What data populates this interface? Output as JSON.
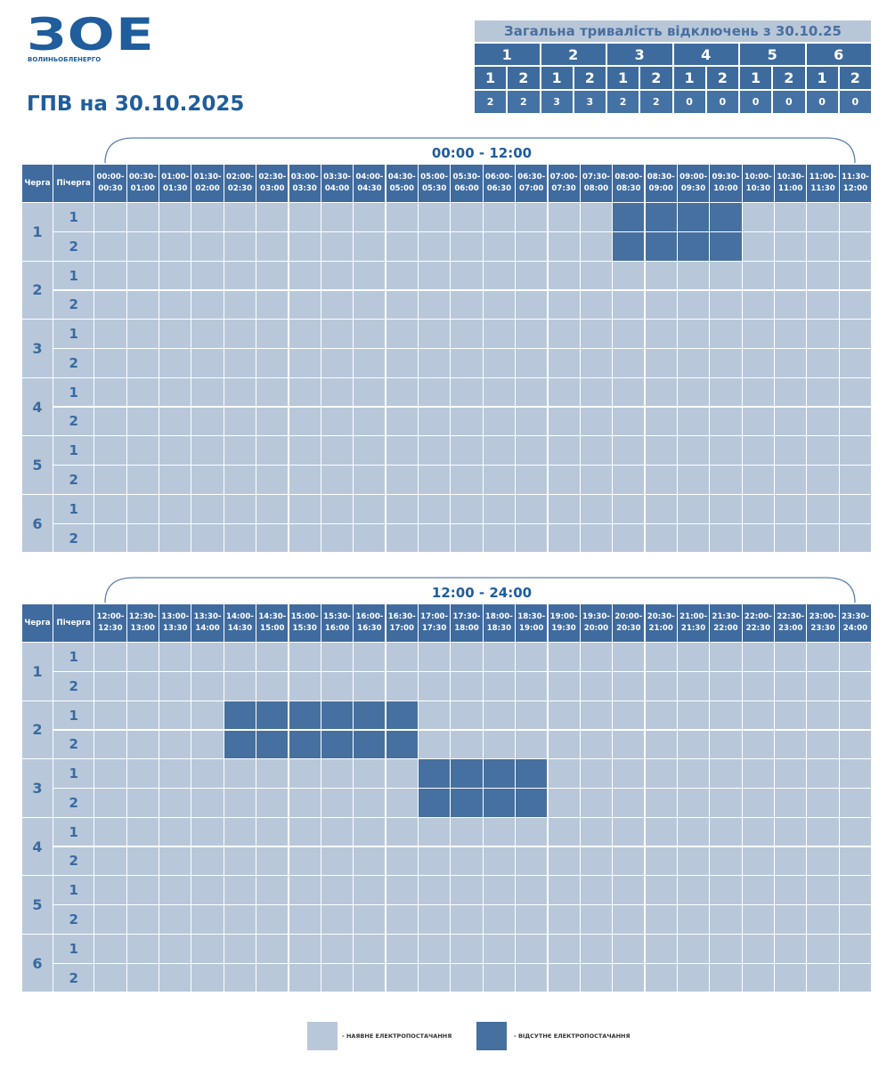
{
  "logo": {
    "mark": "ЗОЕ",
    "name": "ВОЛИНЬОБЛЕНЕРГО"
  },
  "title": "ГПВ на 30.10.2025",
  "summary": {
    "title": "Загальна тривалість відключень з 30.10.25",
    "queues": [
      "1",
      "2",
      "3",
      "4",
      "5",
      "6"
    ],
    "subqueues": [
      "1",
      "2",
      "1",
      "2",
      "1",
      "2",
      "1",
      "2",
      "1",
      "2",
      "1",
      "2"
    ],
    "hours": [
      2,
      2,
      3,
      3,
      2,
      2,
      0,
      0,
      0,
      0,
      0,
      0
    ]
  },
  "schedules": [
    {
      "period": "00:00 - 12:00",
      "queue_header": "Черга",
      "subqueue_header": "Пічерга",
      "slots": [
        [
          "00:00-",
          "00:30"
        ],
        [
          "00:30-",
          "01:00"
        ],
        [
          "01:00-",
          "01:30"
        ],
        [
          "01:30-",
          "02:00"
        ],
        [
          "02:00-",
          "02:30"
        ],
        [
          "02:30-",
          "03:00"
        ],
        [
          "03:00-",
          "03:30"
        ],
        [
          "03:30-",
          "04:00"
        ],
        [
          "04:00-",
          "04:30"
        ],
        [
          "04:30-",
          "05:00"
        ],
        [
          "05:00-",
          "05:30"
        ],
        [
          "05:30-",
          "06:00"
        ],
        [
          "06:00-",
          "06:30"
        ],
        [
          "06:30-",
          "07:00"
        ],
        [
          "07:00-",
          "07:30"
        ],
        [
          "07:30-",
          "08:00"
        ],
        [
          "08:00-",
          "08:30"
        ],
        [
          "08:30-",
          "09:00"
        ],
        [
          "09:00-",
          "09:30"
        ],
        [
          "09:30-",
          "10:00"
        ],
        [
          "10:00-",
          "10:30"
        ],
        [
          "10:30-",
          "11:00"
        ],
        [
          "11:00-",
          "11:30"
        ],
        [
          "11:30-",
          "12:00"
        ]
      ],
      "queues": [
        {
          "queue": "1",
          "subqueues": [
            {
              "label": "1",
              "outage": [
                0,
                0,
                0,
                0,
                0,
                0,
                0,
                0,
                0,
                0,
                0,
                0,
                0,
                0,
                0,
                0,
                1,
                1,
                1,
                1,
                0,
                0,
                0,
                0
              ]
            },
            {
              "label": "2",
              "outage": [
                0,
                0,
                0,
                0,
                0,
                0,
                0,
                0,
                0,
                0,
                0,
                0,
                0,
                0,
                0,
                0,
                1,
                1,
                1,
                1,
                0,
                0,
                0,
                0
              ]
            }
          ]
        },
        {
          "queue": "2",
          "subqueues": [
            {
              "label": "1",
              "outage": [
                0,
                0,
                0,
                0,
                0,
                0,
                0,
                0,
                0,
                0,
                0,
                0,
                0,
                0,
                0,
                0,
                0,
                0,
                0,
                0,
                0,
                0,
                0,
                0
              ]
            },
            {
              "label": "2",
              "outage": [
                0,
                0,
                0,
                0,
                0,
                0,
                0,
                0,
                0,
                0,
                0,
                0,
                0,
                0,
                0,
                0,
                0,
                0,
                0,
                0,
                0,
                0,
                0,
                0
              ]
            }
          ]
        },
        {
          "queue": "3",
          "subqueues": [
            {
              "label": "1",
              "outage": [
                0,
                0,
                0,
                0,
                0,
                0,
                0,
                0,
                0,
                0,
                0,
                0,
                0,
                0,
                0,
                0,
                0,
                0,
                0,
                0,
                0,
                0,
                0,
                0
              ]
            },
            {
              "label": "2",
              "outage": [
                0,
                0,
                0,
                0,
                0,
                0,
                0,
                0,
                0,
                0,
                0,
                0,
                0,
                0,
                0,
                0,
                0,
                0,
                0,
                0,
                0,
                0,
                0,
                0
              ]
            }
          ]
        },
        {
          "queue": "4",
          "subqueues": [
            {
              "label": "1",
              "outage": [
                0,
                0,
                0,
                0,
                0,
                0,
                0,
                0,
                0,
                0,
                0,
                0,
                0,
                0,
                0,
                0,
                0,
                0,
                0,
                0,
                0,
                0,
                0,
                0
              ]
            },
            {
              "label": "2",
              "outage": [
                0,
                0,
                0,
                0,
                0,
                0,
                0,
                0,
                0,
                0,
                0,
                0,
                0,
                0,
                0,
                0,
                0,
                0,
                0,
                0,
                0,
                0,
                0,
                0
              ]
            }
          ]
        },
        {
          "queue": "5",
          "subqueues": [
            {
              "label": "1",
              "outage": [
                0,
                0,
                0,
                0,
                0,
                0,
                0,
                0,
                0,
                0,
                0,
                0,
                0,
                0,
                0,
                0,
                0,
                0,
                0,
                0,
                0,
                0,
                0,
                0
              ]
            },
            {
              "label": "2",
              "outage": [
                0,
                0,
                0,
                0,
                0,
                0,
                0,
                0,
                0,
                0,
                0,
                0,
                0,
                0,
                0,
                0,
                0,
                0,
                0,
                0,
                0,
                0,
                0,
                0
              ]
            }
          ]
        },
        {
          "queue": "6",
          "subqueues": [
            {
              "label": "1",
              "outage": [
                0,
                0,
                0,
                0,
                0,
                0,
                0,
                0,
                0,
                0,
                0,
                0,
                0,
                0,
                0,
                0,
                0,
                0,
                0,
                0,
                0,
                0,
                0,
                0
              ]
            },
            {
              "label": "2",
              "outage": [
                0,
                0,
                0,
                0,
                0,
                0,
                0,
                0,
                0,
                0,
                0,
                0,
                0,
                0,
                0,
                0,
                0,
                0,
                0,
                0,
                0,
                0,
                0,
                0
              ]
            }
          ]
        }
      ]
    },
    {
      "period": "12:00 - 24:00",
      "queue_header": "Черга",
      "subqueue_header": "Пічерга",
      "slots": [
        [
          "12:00-",
          "12:30"
        ],
        [
          "12:30-",
          "13:00"
        ],
        [
          "13:00-",
          "13:30"
        ],
        [
          "13:30-",
          "14:00"
        ],
        [
          "14:00-",
          "14:30"
        ],
        [
          "14:30-",
          "15:00"
        ],
        [
          "15:00-",
          "15:30"
        ],
        [
          "15:30-",
          "16:00"
        ],
        [
          "16:00-",
          "16:30"
        ],
        [
          "16:30-",
          "17:00"
        ],
        [
          "17:00-",
          "17:30"
        ],
        [
          "17:30-",
          "18:00"
        ],
        [
          "18:00-",
          "18:30"
        ],
        [
          "18:30-",
          "19:00"
        ],
        [
          "19:00-",
          "19:30"
        ],
        [
          "19:30-",
          "20:00"
        ],
        [
          "20:00-",
          "20:30"
        ],
        [
          "20:30-",
          "21:00"
        ],
        [
          "21:00-",
          "21:30"
        ],
        [
          "21:30-",
          "22:00"
        ],
        [
          "22:00-",
          "22:30"
        ],
        [
          "22:30-",
          "23:00"
        ],
        [
          "23:00-",
          "23:30"
        ],
        [
          "23:30-",
          "24:00"
        ]
      ],
      "queues": [
        {
          "queue": "1",
          "subqueues": [
            {
              "label": "1",
              "outage": [
                0,
                0,
                0,
                0,
                0,
                0,
                0,
                0,
                0,
                0,
                0,
                0,
                0,
                0,
                0,
                0,
                0,
                0,
                0,
                0,
                0,
                0,
                0,
                0
              ]
            },
            {
              "label": "2",
              "outage": [
                0,
                0,
                0,
                0,
                0,
                0,
                0,
                0,
                0,
                0,
                0,
                0,
                0,
                0,
                0,
                0,
                0,
                0,
                0,
                0,
                0,
                0,
                0,
                0
              ]
            }
          ]
        },
        {
          "queue": "2",
          "subqueues": [
            {
              "label": "1",
              "outage": [
                0,
                0,
                0,
                0,
                1,
                1,
                1,
                1,
                1,
                1,
                0,
                0,
                0,
                0,
                0,
                0,
                0,
                0,
                0,
                0,
                0,
                0,
                0,
                0
              ]
            },
            {
              "label": "2",
              "outage": [
                0,
                0,
                0,
                0,
                1,
                1,
                1,
                1,
                1,
                1,
                0,
                0,
                0,
                0,
                0,
                0,
                0,
                0,
                0,
                0,
                0,
                0,
                0,
                0
              ]
            }
          ]
        },
        {
          "queue": "3",
          "subqueues": [
            {
              "label": "1",
              "outage": [
                0,
                0,
                0,
                0,
                0,
                0,
                0,
                0,
                0,
                0,
                1,
                1,
                1,
                1,
                0,
                0,
                0,
                0,
                0,
                0,
                0,
                0,
                0,
                0
              ]
            },
            {
              "label": "2",
              "outage": [
                0,
                0,
                0,
                0,
                0,
                0,
                0,
                0,
                0,
                0,
                1,
                1,
                1,
                1,
                0,
                0,
                0,
                0,
                0,
                0,
                0,
                0,
                0,
                0
              ]
            }
          ]
        },
        {
          "queue": "4",
          "subqueues": [
            {
              "label": "1",
              "outage": [
                0,
                0,
                0,
                0,
                0,
                0,
                0,
                0,
                0,
                0,
                0,
                0,
                0,
                0,
                0,
                0,
                0,
                0,
                0,
                0,
                0,
                0,
                0,
                0
              ]
            },
            {
              "label": "2",
              "outage": [
                0,
                0,
                0,
                0,
                0,
                0,
                0,
                0,
                0,
                0,
                0,
                0,
                0,
                0,
                0,
                0,
                0,
                0,
                0,
                0,
                0,
                0,
                0,
                0
              ]
            }
          ]
        },
        {
          "queue": "5",
          "subqueues": [
            {
              "label": "1",
              "outage": [
                0,
                0,
                0,
                0,
                0,
                0,
                0,
                0,
                0,
                0,
                0,
                0,
                0,
                0,
                0,
                0,
                0,
                0,
                0,
                0,
                0,
                0,
                0,
                0
              ]
            },
            {
              "label": "2",
              "outage": [
                0,
                0,
                0,
                0,
                0,
                0,
                0,
                0,
                0,
                0,
                0,
                0,
                0,
                0,
                0,
                0,
                0,
                0,
                0,
                0,
                0,
                0,
                0,
                0
              ]
            }
          ]
        },
        {
          "queue": "6",
          "subqueues": [
            {
              "label": "1",
              "outage": [
                0,
                0,
                0,
                0,
                0,
                0,
                0,
                0,
                0,
                0,
                0,
                0,
                0,
                0,
                0,
                0,
                0,
                0,
                0,
                0,
                0,
                0,
                0,
                0
              ]
            },
            {
              "label": "2",
              "outage": [
                0,
                0,
                0,
                0,
                0,
                0,
                0,
                0,
                0,
                0,
                0,
                0,
                0,
                0,
                0,
                0,
                0,
                0,
                0,
                0,
                0,
                0,
                0,
                0
              ]
            }
          ]
        }
      ]
    }
  ],
  "legend": [
    {
      "label": "- НАЯВНЕ ЕЛЕКТРОПОСТАЧАННЯ",
      "color": "#b8c8da"
    },
    {
      "label": "- ВІДСУТНЄ ЕЛЕКТРОПОСТАЧАННЯ",
      "color": "#46709f"
    }
  ]
}
